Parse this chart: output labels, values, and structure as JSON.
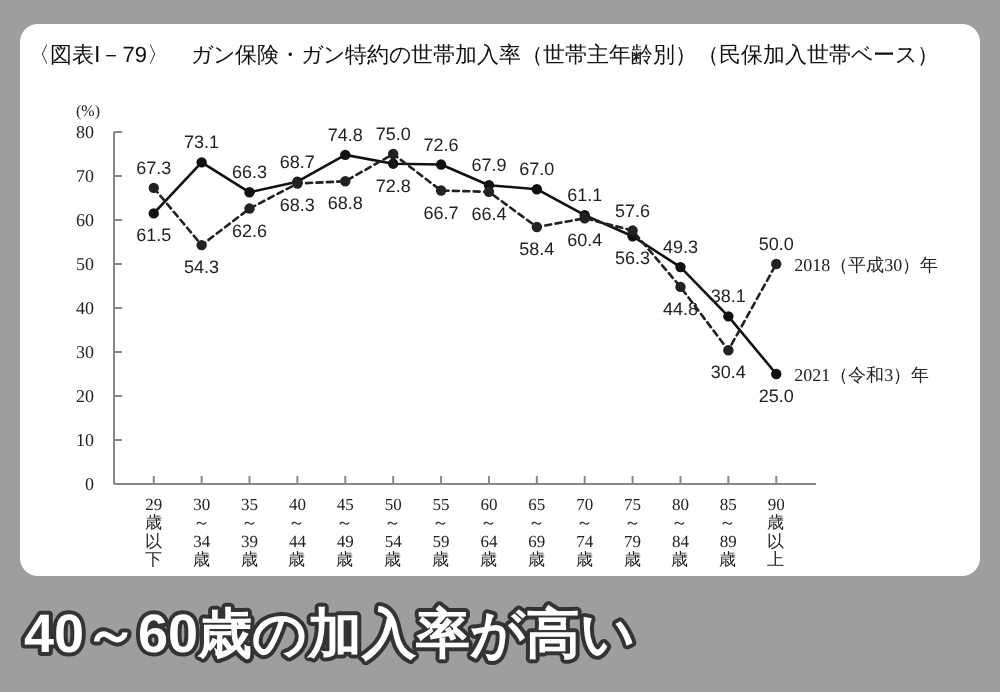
{
  "chart_data": {
    "type": "line",
    "title": "〈図表Ⅰ－79〉　ガン保険・ガン特約の世帯加入率（世帯主年齢別）（民保加入世帯ベース）",
    "ylabel": "(%)",
    "categories": [
      "29歳以下",
      "30～34歳",
      "35～39歳",
      "40～44歳",
      "45～49歳",
      "50～54歳",
      "55～59歳",
      "60～64歳",
      "65～69歳",
      "70～74歳",
      "75～79歳",
      "80～84歳",
      "85～89歳",
      "90歳以上"
    ],
    "series": [
      {
        "name": "2021（令和3）年",
        "color": "#111111",
        "line_style": "solid",
        "values": [
          61.5,
          73.1,
          66.3,
          68.7,
          74.8,
          72.8,
          72.6,
          67.9,
          67.0,
          61.1,
          56.3,
          49.3,
          38.1,
          25.0
        ],
        "value_labels": [
          "61.5",
          "73.1",
          "66.3",
          "68.7",
          "74.8",
          "72.8",
          "72.6",
          "67.9",
          "67.0",
          "61.1",
          "56.3",
          "49.3",
          "38.1",
          "25.0"
        ]
      },
      {
        "name": "2018（平成30）年",
        "color": "#222222",
        "line_style": "dashed",
        "values": [
          67.3,
          54.3,
          62.6,
          68.3,
          68.8,
          75.0,
          66.7,
          66.4,
          58.4,
          60.4,
          57.6,
          44.8,
          30.4,
          50.0
        ],
        "value_labels": [
          "67.3",
          "54.3",
          "62.6",
          "68.3",
          "68.8",
          "75.0",
          "66.7",
          "66.4",
          "58.4",
          "60.4",
          "57.6",
          "44.8",
          "30.4",
          "50.0"
        ]
      }
    ],
    "ylim": [
      0,
      80
    ],
    "yticks": [
      0,
      10,
      20,
      30,
      40,
      50,
      60,
      70,
      80
    ],
    "marker": "circle",
    "grid": false,
    "annotations": [
      "40～60歳の加入率が高い"
    ]
  }
}
